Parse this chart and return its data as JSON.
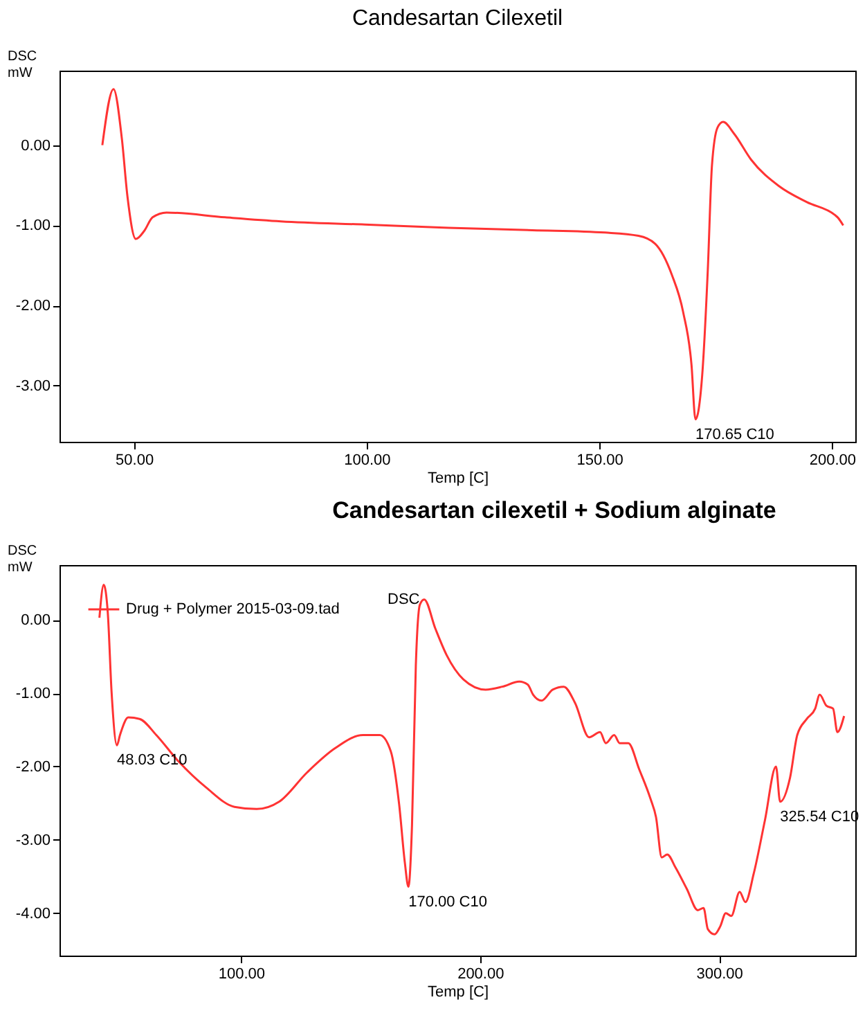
{
  "chart_data": [
    {
      "type": "line",
      "title": "Candesartan Cilexetil",
      "xlabel": "Temp   [C]",
      "ylabel": "DSC\nmW",
      "xlim": [
        34,
        205
      ],
      "ylim": [
        -3.7,
        0.93
      ],
      "xticks": [
        {
          "value": 50,
          "label": "50.00"
        },
        {
          "value": 100,
          "label": "100.00"
        },
        {
          "value": 150,
          "label": "150.00"
        },
        {
          "value": 200,
          "label": "200.00"
        }
      ],
      "yticks": [
        {
          "value": 0,
          "label": "0.00"
        },
        {
          "value": -1,
          "label": "-1.00"
        },
        {
          "value": -2,
          "label": "-2.00"
        },
        {
          "value": -3,
          "label": "-3.00"
        }
      ],
      "grid": false,
      "legend": false,
      "annotations": [
        {
          "text": "170.65 C10",
          "x": 170.65,
          "y": -3.42
        }
      ],
      "series": [
        {
          "color": "#ff3333",
          "x": [
            43.2,
            45.6,
            47.4,
            48.6,
            50.4,
            52.2,
            54,
            57,
            69.6,
            81.6,
            99.6,
            117.6,
            135.6,
            151.2,
            158.4,
            162,
            165.6,
            168,
            169.8,
            170.65,
            172.1,
            173.3,
            174.2,
            175.4,
            176.6,
            179,
            182.6,
            188.6,
            194.6,
            200.6,
            201.2,
            202.4
          ],
          "values": [
            0,
            0.7,
            0.08,
            -0.64,
            -1.17,
            -1.07,
            -0.9,
            -0.84,
            -0.9,
            -0.95,
            -0.99,
            -1.03,
            -1.06,
            -1.09,
            -1.13,
            -1.23,
            -1.62,
            -2.08,
            -2.74,
            -3.42,
            -2.87,
            -1.56,
            -0.25,
            0.22,
            0.29,
            0.14,
            -0.18,
            -0.51,
            -0.71,
            -0.87,
            -0.9,
            -1.0
          ]
        }
      ]
    },
    {
      "type": "line",
      "title": "Candesartan cilexetil + Sodium alginate",
      "xlabel": "Temp   [C]",
      "ylabel": "DSC\nmW",
      "xlim": [
        24,
        357
      ],
      "ylim": [
        -4.58,
        0.75
      ],
      "xticks": [
        {
          "value": 100,
          "label": "100.00"
        },
        {
          "value": 200,
          "label": "200.00"
        },
        {
          "value": 300,
          "label": "300.00"
        }
      ],
      "yticks": [
        {
          "value": 0,
          "label": "0.00"
        },
        {
          "value": -1,
          "label": "-1.00"
        },
        {
          "value": -2,
          "label": "-2.00"
        },
        {
          "value": -3,
          "label": "-3.00"
        },
        {
          "value": -4,
          "label": "-4.00"
        }
      ],
      "grid": false,
      "legend": "top left",
      "annotations": [
        "DSC",
        {
          "text": "48.03 C10",
          "x": 48.03,
          "y": -1.71
        },
        {
          "text": "170.00 C10",
          "x": 170.0,
          "y": -3.64
        },
        {
          "text": "325.54 C10",
          "x": 325.54,
          "y": -2.48
        }
      ],
      "series": [
        {
          "name": "Drug + Polymer 2015-03-09.tad",
          "color": "#ff3333",
          "x": [
            40.7,
            42.5,
            44.2,
            45.8,
            48.03,
            49.3,
            52.8,
            57.5,
            64.5,
            73.8,
            85.5,
            97.2,
            106.5,
            115.9,
            127.6,
            139.3,
            151,
            158,
            162.6,
            166.1,
            168.5,
            170,
            171.5,
            173.1,
            174.8,
            176.6,
            181.3,
            186,
            193,
            202.3,
            209.3,
            216.4,
            219.9,
            222.2,
            225.7,
            230.4,
            235,
            239.7,
            245.6,
            250.2,
            252.6,
            256.1,
            258.4,
            262,
            266.6,
            271.3,
            273.6,
            276,
            278.3,
            281.8,
            286.5,
            291.1,
            293.5,
            295.3,
            298.1,
            300.5,
            302.8,
            305.1,
            308.6,
            311,
            314.5,
            319.2,
            323.8,
            325.54,
            329.7,
            332.7,
            336.7,
            340.2,
            342.1,
            344.9,
            347.7,
            349.5,
            352.3
          ],
          "values": [
            0.03,
            0.48,
            0.1,
            -0.99,
            -1.71,
            -1.57,
            -1.33,
            -1.35,
            -1.57,
            -1.93,
            -2.29,
            -2.55,
            -2.58,
            -2.48,
            -2.08,
            -1.75,
            -1.57,
            -1.57,
            -1.79,
            -2.51,
            -3.31,
            -3.64,
            -2.8,
            -0.62,
            0.21,
            0.28,
            -0.12,
            -0.48,
            -0.81,
            -0.95,
            -0.91,
            -0.84,
            -0.88,
            -1.02,
            -1.1,
            -0.95,
            -0.91,
            -1.13,
            -1.6,
            -1.53,
            -1.68,
            -1.57,
            -1.68,
            -1.68,
            -2.04,
            -2.44,
            -2.69,
            -3.24,
            -3.2,
            -3.38,
            -3.67,
            -3.96,
            -3.93,
            -4.22,
            -4.29,
            -4.18,
            -4.0,
            -4.04,
            -3.71,
            -3.85,
            -3.46,
            -2.73,
            -2.0,
            -2.48,
            -2.15,
            -1.57,
            -1.35,
            -1.21,
            -1.02,
            -1.17,
            -1.21,
            -1.53,
            -1.31
          ]
        }
      ]
    }
  ]
}
